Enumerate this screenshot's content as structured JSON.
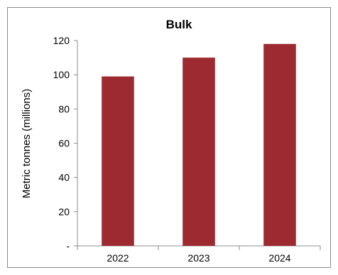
{
  "chart_data": {
    "type": "bar",
    "title": "Bulk",
    "ylabel": "Metric tonnes  (millions)",
    "xlabel": "",
    "categories": [
      "2022",
      "2023",
      "2024"
    ],
    "values": [
      99,
      110,
      118
    ],
    "ylim": [
      0,
      120
    ],
    "yticks": [
      0,
      20,
      40,
      60,
      80,
      100,
      120
    ],
    "ytick_labels": [
      "-",
      "20",
      "40",
      "60",
      "80",
      "100",
      "120"
    ],
    "bar_color": "#9E2A31",
    "grid": false,
    "legend": "none"
  }
}
